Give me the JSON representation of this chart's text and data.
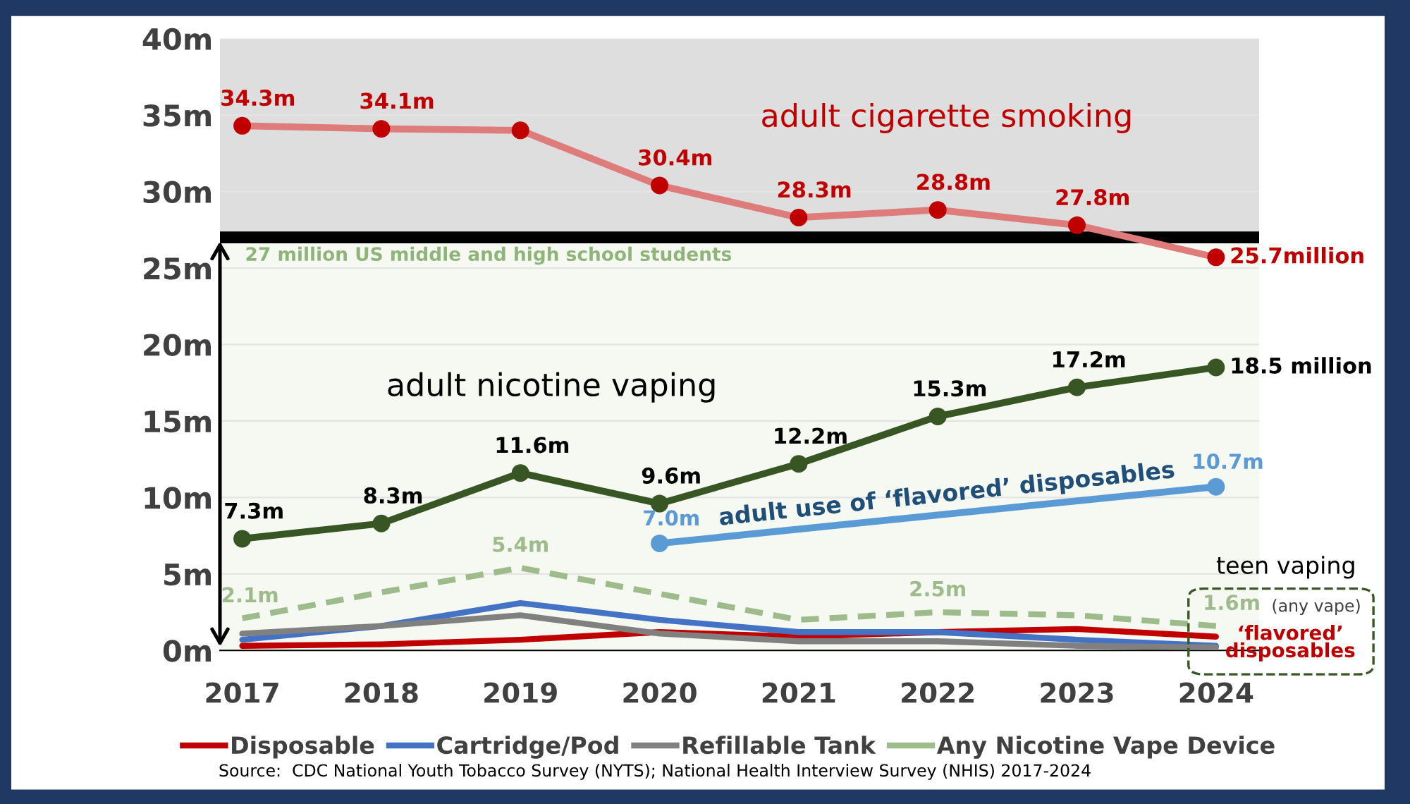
{
  "chart_data": {
    "type": "line",
    "categories": [
      "2017",
      "2018",
      "2019",
      "2020",
      "2021",
      "2022",
      "2023",
      "2024"
    ],
    "ylim": [
      0,
      40
    ],
    "yticks": [
      {
        "value": 0,
        "label": "0m"
      },
      {
        "value": 5,
        "label": "5m"
      },
      {
        "value": 10,
        "label": "10m"
      },
      {
        "value": 15,
        "label": "15m"
      },
      {
        "value": 20,
        "label": "20m"
      },
      {
        "value": 25,
        "label": "25m"
      },
      {
        "value": 30,
        "label": "30m"
      },
      {
        "value": 35,
        "label": "35m"
      },
      {
        "value": 40,
        "label": "40m"
      }
    ],
    "grid": "y",
    "legend": "bottom",
    "series": [
      {
        "name": "adult cigarette smoking",
        "color": "#c00000",
        "marker": "circle",
        "values": [
          34.3,
          34.1,
          34.0,
          30.4,
          28.3,
          28.8,
          27.8,
          25.7
        ],
        "value_labels": [
          "34.3m",
          "34.1m",
          null,
          "30.4m",
          "28.3m",
          "28.8m",
          "27.8m",
          "25.7million"
        ]
      },
      {
        "name": "adult nicotine vaping",
        "color": "#375623",
        "marker": "circle",
        "values": [
          7.3,
          8.3,
          11.6,
          9.6,
          12.2,
          15.3,
          17.2,
          18.5
        ],
        "value_labels": [
          "7.3m",
          "8.3m",
          "11.6m",
          "9.6m",
          "12.2m",
          "15.3m",
          "17.2m",
          "18.5 million"
        ]
      },
      {
        "name": "adult use of ‘flavored’ disposables",
        "color": "#5b9bd5",
        "marker": "circle",
        "values": [
          null,
          null,
          null,
          7.0,
          null,
          null,
          null,
          10.7
        ],
        "value_labels": [
          null,
          null,
          null,
          "7.0m",
          null,
          null,
          null,
          "10.7m"
        ]
      },
      {
        "name": "Disposable",
        "color": "#c00000",
        "marker": "none",
        "values": [
          0.3,
          0.4,
          0.7,
          1.2,
          0.9,
          1.2,
          1.4,
          0.9
        ]
      },
      {
        "name": "Cartridge/Pod",
        "color": "#4472c4",
        "marker": "none",
        "values": [
          0.7,
          1.6,
          3.1,
          2.0,
          1.2,
          1.2,
          0.7,
          0.3
        ]
      },
      {
        "name": "Refillable Tank",
        "color": "#808080",
        "marker": "none",
        "values": [
          1.1,
          1.6,
          2.3,
          1.1,
          0.6,
          0.6,
          0.3,
          0.2
        ]
      },
      {
        "name": "Any Nicotine Vape Device",
        "color": "#9dbb8b",
        "marker": "none",
        "line_style": "dashed",
        "values": [
          2.1,
          3.8,
          5.4,
          3.7,
          2.0,
          2.5,
          2.3,
          1.6
        ],
        "value_labels": [
          "2.1m",
          null,
          "5.4m",
          null,
          null,
          "2.5m",
          null,
          "1.6m"
        ]
      }
    ],
    "bands": [
      {
        "axis": "y",
        "from": 27,
        "to": 40,
        "color": "#dedede"
      },
      {
        "axis": "y",
        "from": 0,
        "to": 27,
        "color": "#f6f9f2",
        "label": "27 million US middle and high school students"
      }
    ],
    "ref_lines": [
      {
        "axis": "y",
        "value": 27,
        "color": "#000000"
      }
    ],
    "annotations": [
      "teen vaping",
      "(any vape)",
      "‘flavored’ disposables",
      "Source:  CDC National Youth Tobacco Survey (NYTS); National Health Interview Survey (NHIS) 2017-2024"
    ]
  }
}
